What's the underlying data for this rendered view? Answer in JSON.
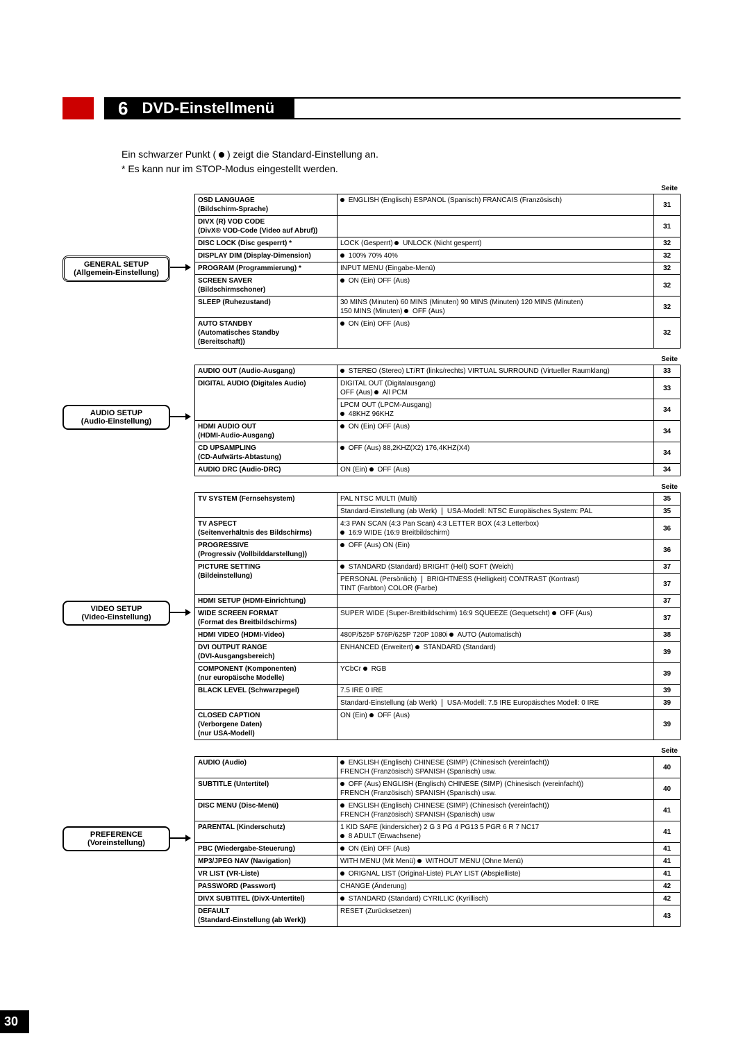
{
  "chapter": {
    "num": "6",
    "title": "DVD-Einstellmenü"
  },
  "intro": {
    "line1a": "Ein schwarzer Punkt (",
    "line1b": ") zeigt die Standard-Einstellung an.",
    "line2": "* Es kann nur im STOP-Modus eingestellt werden."
  },
  "seite_label": "Seite",
  "page_number": "30",
  "categories": {
    "general": {
      "title": "GENERAL SETUP",
      "sub": "(Allgemein-Einstellung)"
    },
    "audio": {
      "title": "AUDIO SETUP",
      "sub": "(Audio-Einstellung)"
    },
    "video": {
      "title": "VIDEO SETUP",
      "sub": "(Video-Einstellung)"
    },
    "pref": {
      "title": "PREFERENCE",
      "sub": "(Voreinstellung)"
    }
  },
  "general": [
    {
      "label": "OSD LANGUAGE\n(Bildschirm-Sprache)",
      "opts": "● ENGLISH (Englisch)   ESPANOL (Spanisch)   FRANCAIS (Französisch)",
      "page": "31"
    },
    {
      "label": "DIVX (R) VOD CODE\n(DivX® VOD-Code (Video auf Abruf))",
      "opts": "",
      "page": "31"
    },
    {
      "label": "DISC LOCK (Disc gesperrt) *",
      "opts": "LOCK (Gesperrt)   ● UNLOCK (Nicht gesperrt)",
      "page": "32"
    },
    {
      "label": "DISPLAY DIM (Display-Dimension)",
      "opts": "● 100%   70%   40%",
      "page": "32"
    },
    {
      "label": "PROGRAM (Programmierung) *",
      "opts": "INPUT MENU (Eingabe-Menü)",
      "page": "32"
    },
    {
      "label": "SCREEN SAVER\n(Bildschirmschoner)",
      "opts": "● ON (Ein)   OFF (Aus)",
      "page": "32"
    },
    {
      "label": "SLEEP (Ruhezustand)",
      "opts": "30 MINS (Minuten)   60 MINS (Minuten)   90 MINS (Minuten)   120 MINS (Minuten)\n150 MINS (Minuten)   ● OFF (Aus)",
      "page": "32"
    },
    {
      "label": "AUTO STANDBY\n(Automatisches Standby\n(Bereitschaft))",
      "opts": "● ON (Ein)   OFF (Aus)",
      "page": "32"
    }
  ],
  "audio": [
    {
      "label": "AUDIO OUT (Audio-Ausgang)",
      "opts": "● STEREO (Stereo)   LT/RT (links/rechts)   VIRTUAL SURROUND (Virtueller Raumklang)",
      "page": "33"
    },
    {
      "label": "DIGITAL AUDIO (Digitales Audio)",
      "opts_multi": [
        {
          "t": "DIGITAL OUT (Digitalausgang)\nOFF (Aus)   ● All   PCM",
          "p": "33"
        },
        {
          "t": "LPCM OUT (LPCM-Ausgang)\n● 48KHZ   96KHZ",
          "p": "34"
        }
      ]
    },
    {
      "label": "HDMI AUDIO OUT\n(HDMI-Audio-Ausgang)",
      "opts": "● ON (Ein)   OFF (Aus)",
      "page": "34"
    },
    {
      "label": "CD UPSAMPLING\n(CD-Aufwärts-Abtastung)",
      "opts": "● OFF (Aus)   88,2KHZ(X2)   176,4KHZ(X4)",
      "page": "34"
    },
    {
      "label": "AUDIO DRC (Audio-DRC)",
      "opts": "ON (Ein)   ● OFF (Aus)",
      "page": "34"
    }
  ],
  "video": [
    {
      "label": "TV SYSTEM (Fernsehsystem)",
      "opts_multi": [
        {
          "t": "PAL   NTSC   MULTI (Multi)",
          "p": "35"
        },
        {
          "t": "Standard-Einstellung (ab Werk) | USA-Modell: NTSC   Europäisches System: PAL",
          "p": "35"
        }
      ]
    },
    {
      "label": "TV ASPECT\n(Seitenverhältnis des Bildschirms)",
      "opts": "4:3 PAN SCAN (4:3 Pan Scan)   4:3 LETTER BOX (4:3 Letterbox)\n● 16:9 WIDE (16:9 Breitbildschirm)",
      "page": "36"
    },
    {
      "label": "PROGRESSIVE\n(Progressiv (Vollbilddarstellung))",
      "opts": "● OFF (Aus)   ON (Ein)",
      "page": "36"
    },
    {
      "label": "PICTURE SETTING\n(Bildeinstellung)",
      "opts_multi": [
        {
          "t": "● STANDARD (Standard)   BRIGHT (Hell)   SOFT (Weich)",
          "p": "37"
        },
        {
          "t": "PERSONAL (Persönlich) | BRIGHTNESS (Helligkeit)   CONTRAST (Kontrast)\n                                        TINT (Farbton)   COLOR (Farbe)",
          "p": "37"
        }
      ]
    },
    {
      "label": "HDMI SETUP (HDMI-Einrichtung)",
      "opts": "",
      "page": "37"
    },
    {
      "label": "WIDE SCREEN FORMAT\n(Format des Breitbildschirms)",
      "opts": "SUPER WIDE (Super-Breitbildschirm)   16:9 SQUEEZE (Gequetscht)   ● OFF (Aus)",
      "page": "37"
    },
    {
      "label": "HDMI VIDEO (HDMI-Video)",
      "opts": "480P/525P   576P/625P   720P   1080i   ● AUTO (Automatisch)",
      "page": "38"
    },
    {
      "label": "DVI OUTPUT RANGE\n(DVI-Ausgangsbereich)",
      "opts": "ENHANCED (Erweitert)   ● STANDARD (Standard)",
      "page": "39"
    },
    {
      "label": "COMPONENT (Komponenten)\n(nur europäische Modelle)",
      "opts": "YCbCr   ● RGB",
      "page": "39"
    },
    {
      "label": "BLACK LEVEL (Schwarzpegel)",
      "opts_multi": [
        {
          "t": "7.5 IRE   0 IRE",
          "p": "39"
        },
        {
          "t": "Standard-Einstellung (ab Werk) | USA-Modell: 7.5 IRE   Europäisches Modell: 0 IRE",
          "p": "39"
        }
      ]
    },
    {
      "label": "CLOSED CAPTION\n(Verborgene Daten)\n(nur USA-Modell)",
      "opts": "ON (Ein)   ● OFF (Aus)",
      "page": "39"
    }
  ],
  "pref": [
    {
      "label": "AUDIO (Audio)",
      "opts": "● ENGLISH (Englisch)   CHINESE (SIMP) (Chinesisch (vereinfacht))\nFRENCH (Französisch)   SPANISH (Spanisch)   usw.",
      "page": "40"
    },
    {
      "label": "SUBTITLE (Untertitel)",
      "opts": "● OFF (Aus)   ENGLISH (Englisch)   CHINESE (SIMP) (Chinesisch (vereinfacht))\nFRENCH (Französisch)   SPANISH (Spanisch)   usw.",
      "page": "40"
    },
    {
      "label": "DISC MENU (Disc-Menü)",
      "opts": "● ENGLISH (Englisch)   CHINESE (SIMP) (Chinesisch (vereinfacht))\nFRENCH (Französisch)   SPANISH (Spanisch)   usw",
      "page": "41"
    },
    {
      "label": "PARENTAL (Kinderschutz)",
      "opts": "1 KID SAFE (kindersicher)   2 G   3 PG   4 PG13   5 PGR   6 R   7 NC17\n● 8 ADULT (Erwachsene)",
      "page": "41"
    },
    {
      "label": "PBC (Wiedergabe-Steuerung)",
      "opts": "● ON (Ein)   OFF (Aus)",
      "page": "41"
    },
    {
      "label": "MP3/JPEG NAV (Navigation)",
      "opts": "WITH MENU (Mit Menü)   ● WITHOUT MENU (Ohne Menü)",
      "page": "41"
    },
    {
      "label": "VR LIST (VR-Liste)",
      "opts": "● ORIGNAL LIST (Original-Liste)   PLAY LIST (Abspielliste)",
      "page": "41"
    },
    {
      "label": "PASSWORD (Passwort)",
      "opts": "CHANGE (Änderung)",
      "page": "42"
    },
    {
      "label": "DIVX SUBTITEL (DivX-Untertitel)",
      "opts": "● STANDARD (Standard)   CYRILLIC (Kyrillisch)",
      "page": "42"
    },
    {
      "label": "DEFAULT\n(Standard-Einstellung (ab Werk))",
      "opts": "RESET (Zurücksetzen)",
      "page": "43"
    }
  ]
}
